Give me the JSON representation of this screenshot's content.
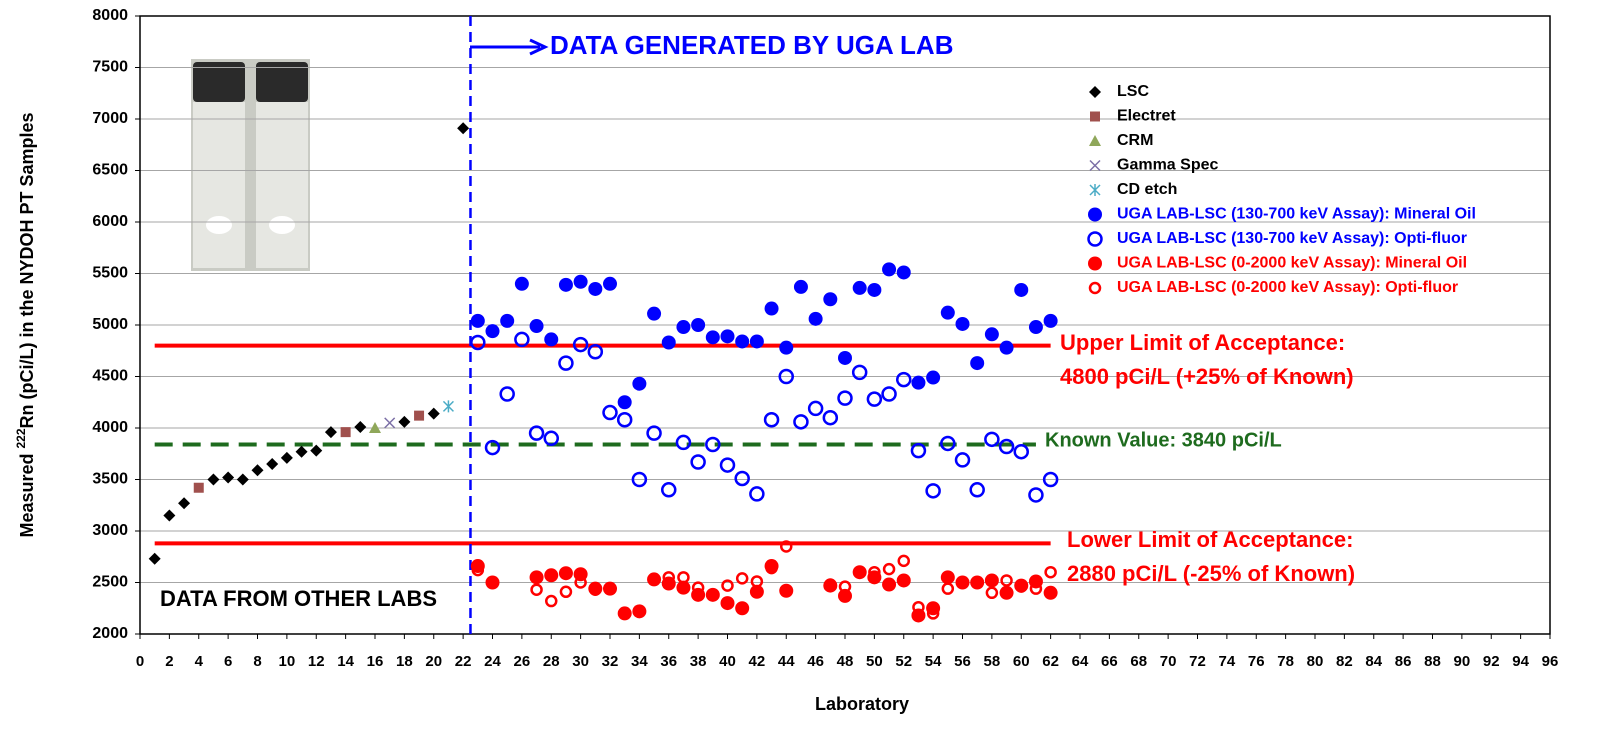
{
  "chart_data": {
    "type": "scatter",
    "x_label": "Laboratory",
    "y_label_parts": [
      "Measured ",
      "222",
      "Rn (pCi/L) in the  NYDOH PT Samples"
    ],
    "xlim": [
      0,
      96
    ],
    "xticks": [
      0,
      2,
      4,
      6,
      8,
      10,
      12,
      14,
      16,
      18,
      20,
      22,
      24,
      26,
      28,
      30,
      32,
      34,
      36,
      38,
      40,
      42,
      44,
      46,
      48,
      50,
      52,
      54,
      56,
      58,
      60,
      62,
      64,
      66,
      68,
      70,
      72,
      74,
      76,
      78,
      80,
      82,
      84,
      86,
      88,
      90,
      92,
      94,
      96
    ],
    "ylim": [
      2000,
      8000
    ],
    "yticks": [
      2000,
      2500,
      3000,
      3500,
      4000,
      4500,
      5000,
      5500,
      6000,
      6500,
      7000,
      7500,
      8000
    ],
    "grid": true,
    "legend": "upper right",
    "series": [
      {
        "name": "LSC",
        "marker": "diamond",
        "color": "#000000",
        "x": [
          1,
          2,
          3,
          5,
          6,
          7,
          8,
          9,
          10,
          11,
          12,
          13,
          15,
          18,
          20,
          22
        ],
        "values": [
          2730,
          3150,
          3270,
          3500,
          3520,
          3500,
          3590,
          3650,
          3710,
          3770,
          3780,
          3960,
          4010,
          4060,
          4140,
          6910
        ]
      },
      {
        "name": "Electret",
        "marker": "square",
        "color": "#a0504d",
        "x": [
          4,
          14,
          19
        ],
        "values": [
          3420,
          3960,
          4120
        ]
      },
      {
        "name": "CRM",
        "marker": "triangle",
        "color": "#8fa75a",
        "x": [
          16
        ],
        "values": [
          4000
        ]
      },
      {
        "name": "Gamma Spec",
        "marker": "x",
        "color": "#7b6fa6",
        "x": [
          17
        ],
        "values": [
          4050
        ]
      },
      {
        "name": "CD etch",
        "marker": "asterisk",
        "color": "#4bacc6",
        "x": [
          21
        ],
        "values": [
          4210
        ]
      },
      {
        "name": "UGA LAB-LSC (130-700 keV Assay): Mineral Oil",
        "marker": "circle",
        "color": "#0000ff",
        "label_color": "#0000ff",
        "x": [
          23,
          24,
          25,
          26,
          27,
          28,
          29,
          30,
          31,
          32,
          33,
          34,
          35,
          36,
          37,
          38,
          39,
          40,
          41,
          42,
          43,
          44,
          45,
          46,
          47,
          48,
          49,
          50,
          51,
          52,
          53,
          54,
          55,
          56,
          57,
          58,
          59,
          60,
          61,
          62
        ],
        "values": [
          5040,
          4940,
          5040,
          5400,
          4990,
          4860,
          5390,
          5420,
          5350,
          5400,
          4250,
          4430,
          5110,
          4830,
          4980,
          5000,
          4880,
          4890,
          4840,
          4840,
          5160,
          4780,
          5370,
          5060,
          5250,
          4680,
          5360,
          5340,
          5540,
          5510,
          4440,
          4490,
          5120,
          5010,
          4630,
          4910,
          4780,
          5340,
          4980,
          5040
        ]
      },
      {
        "name": "UGA LAB-LSC (130-700 keV Assay): Opti-fluor",
        "marker": "open-circle",
        "color": "#0000ff",
        "label_color": "#0000ff",
        "x": [
          23,
          24,
          25,
          26,
          27,
          28,
          29,
          30,
          31,
          32,
          33,
          34,
          35,
          36,
          37,
          38,
          39,
          40,
          41,
          42,
          43,
          44,
          45,
          46,
          47,
          48,
          49,
          50,
          51,
          52,
          53,
          54,
          55,
          56,
          57,
          58,
          59,
          60,
          61,
          62
        ],
        "values": [
          4830,
          3810,
          4330,
          4860,
          3950,
          3900,
          4630,
          4810,
          4740,
          4150,
          4080,
          3500,
          3950,
          3400,
          3860,
          3670,
          3840,
          3640,
          3510,
          3360,
          4080,
          4500,
          4060,
          4190,
          4100,
          4290,
          4540,
          4280,
          4330,
          4470,
          3780,
          3390,
          3850,
          3690,
          3400,
          3890,
          3820,
          3770,
          3350,
          3500
        ]
      },
      {
        "name": "UGA LAB-LSC (0-2000 keV Assay): Mineral Oil",
        "marker": "circle",
        "color": "#ff0000",
        "label_color": "#ff0000",
        "x": [
          23,
          24,
          27,
          28,
          29,
          30,
          31,
          32,
          33,
          34,
          35,
          36,
          37,
          38,
          39,
          40,
          41,
          42,
          43,
          44,
          47,
          48,
          49,
          50,
          51,
          52,
          53,
          54,
          55,
          56,
          57,
          58,
          59,
          60,
          61,
          62
        ],
        "values": [
          2660,
          2500,
          2550,
          2570,
          2590,
          2580,
          2440,
          2440,
          2200,
          2220,
          2530,
          2490,
          2450,
          2380,
          2380,
          2300,
          2250,
          2410,
          2660,
          2420,
          2470,
          2370,
          2600,
          2550,
          2480,
          2520,
          2180,
          2250,
          2550,
          2500,
          2500,
          2520,
          2400,
          2470,
          2510,
          2400
        ]
      },
      {
        "name": "UGA LAB-LSC (0-2000 keV Assay): Opti-fluor",
        "marker": "open-circle-small",
        "color": "#ff0000",
        "label_color": "#ff0000",
        "x": [
          23,
          27,
          28,
          29,
          30,
          31,
          36,
          37,
          38,
          40,
          41,
          42,
          43,
          44,
          47,
          48,
          50,
          51,
          52,
          53,
          54,
          55,
          58,
          59,
          60,
          61,
          62
        ],
        "values": [
          2620,
          2430,
          2320,
          2410,
          2500,
          2430,
          2550,
          2550,
          2450,
          2470,
          2540,
          2510,
          2640,
          2850,
          2480,
          2460,
          2600,
          2630,
          2710,
          2260,
          2200,
          2440,
          2400,
          2520,
          2460,
          2440,
          2600
        ]
      }
    ],
    "ref_lines": [
      {
        "y": 4800,
        "x": [
          1,
          62
        ],
        "color": "#ff0000",
        "dashed": false
      },
      {
        "y": 3840,
        "x": [
          1,
          61
        ],
        "color": "#1e6b1e",
        "dashed": true
      },
      {
        "y": 2880,
        "x": [
          1,
          62
        ],
        "color": "#ff0000",
        "dashed": false
      }
    ],
    "divider_x": 22.5,
    "annotations": [
      {
        "text": "DATA GENERATED BY UGA LAB",
        "color": "#0000ff"
      },
      {
        "text": "DATA FROM OTHER LABS",
        "color": "#000000"
      },
      {
        "text": "Upper Limit of Acceptance:",
        "color": "#ff0000"
      },
      {
        "text": "4800 pCi/L (+25% of Known)",
        "color": "#ff0000"
      },
      {
        "text": "Known Value: 3840 pCi/L",
        "color": "#1e6b1e"
      },
      {
        "text": "Lower Limit of Acceptance:",
        "color": "#ff0000"
      },
      {
        "text": "2880 pCi/L (-25% of Known)",
        "color": "#ff0000"
      }
    ]
  }
}
